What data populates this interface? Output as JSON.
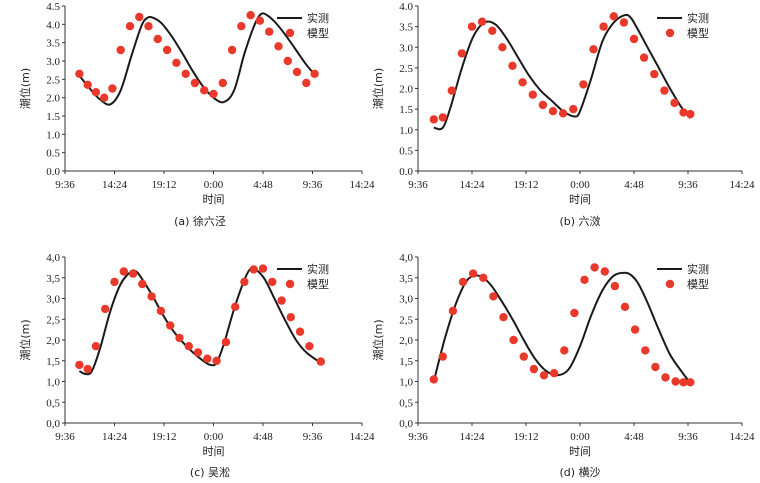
{
  "colors": {
    "measured": "#1a1a1a",
    "model": "#e8392b",
    "axis": "#333333"
  },
  "chart_data": [
    {
      "type": "line",
      "caption": "(a) 徐六泾",
      "xlabel": "时间",
      "ylabel": "潮位(m)",
      "xticks": [
        "9:36",
        "14:24",
        "19:12",
        "0:00",
        "4:48",
        "9:36",
        "14:24"
      ],
      "ylim": [
        0,
        4.5
      ],
      "ystep": 0.5,
      "ydecimals": 1,
      "ydecsep": ".",
      "legend": {
        "position": "top-right",
        "line_label": "实测",
        "marker_label": "模型"
      },
      "series": [
        {
          "name": "实测",
          "style": "line",
          "x": [
            11.0,
            12.0,
            13.0,
            14.0,
            15.0,
            16.0,
            17.0,
            17.6,
            18.2,
            19.0,
            20.0,
            21.0,
            22.0,
            23.0,
            24.0,
            25.0,
            26.0,
            27.0,
            28.0,
            28.6,
            29.2,
            30.0,
            31.0,
            32.0,
            33.0,
            33.9
          ],
          "y": [
            2.6,
            2.25,
            1.95,
            1.82,
            2.2,
            3.1,
            3.95,
            4.18,
            4.17,
            4.02,
            3.65,
            3.2,
            2.72,
            2.3,
            2.0,
            1.88,
            2.2,
            3.2,
            4.0,
            4.28,
            4.25,
            4.05,
            3.7,
            3.3,
            2.9,
            2.6
          ]
        },
        {
          "name": "模型",
          "style": "marker",
          "x": [
            11.0,
            11.8,
            12.6,
            13.4,
            14.2,
            15.0,
            15.9,
            16.8,
            17.7,
            18.6,
            19.5,
            20.4,
            21.3,
            22.2,
            23.1,
            24.0,
            24.9,
            25.8,
            26.7,
            27.6,
            28.5,
            29.4,
            30.3,
            31.2,
            32.1,
            33.0,
            33.8
          ],
          "y": [
            2.65,
            2.35,
            2.15,
            2.0,
            2.25,
            3.3,
            3.95,
            4.2,
            3.95,
            3.6,
            3.3,
            2.95,
            2.65,
            2.4,
            2.2,
            2.1,
            2.4,
            3.3,
            3.95,
            4.25,
            4.1,
            3.8,
            3.4,
            3.0,
            2.7,
            2.4,
            2.65
          ]
        }
      ]
    },
    {
      "type": "line",
      "caption": "(b) 六滧",
      "xlabel": "时间",
      "ylabel": "潮位(m)",
      "xticks": [
        "9:36",
        "14:24",
        "19:12",
        "0:00",
        "4:48",
        "9:36",
        "14:24"
      ],
      "ylim": [
        0,
        4.0
      ],
      "ystep": 0.5,
      "ydecimals": 1,
      "ydecsep": ".",
      "legend": {
        "position": "top-right",
        "line_label": "实测",
        "marker_label": "模型"
      },
      "series": [
        {
          "name": "实测",
          "style": "line",
          "x": [
            11.0,
            11.8,
            12.5,
            13.5,
            14.5,
            15.5,
            16.5,
            17.5,
            18.5,
            19.5,
            20.5,
            21.5,
            22.5,
            23.5,
            24.0,
            25.0,
            26.0,
            27.0,
            28.0,
            28.5,
            29.0,
            30.0,
            31.0,
            32.0,
            33.0,
            33.8
          ],
          "y": [
            1.05,
            1.05,
            1.55,
            2.5,
            3.25,
            3.6,
            3.55,
            3.2,
            2.75,
            2.3,
            1.95,
            1.7,
            1.45,
            1.32,
            1.45,
            2.25,
            3.15,
            3.6,
            3.78,
            3.72,
            3.5,
            3.0,
            2.5,
            2.0,
            1.55,
            1.28
          ]
        },
        {
          "name": "模型",
          "style": "marker",
          "x": [
            11.0,
            11.8,
            12.6,
            13.5,
            14.4,
            15.3,
            16.2,
            17.1,
            18.0,
            18.9,
            19.8,
            20.7,
            21.6,
            22.5,
            23.4,
            24.3,
            25.2,
            26.1,
            27.0,
            27.9,
            28.8,
            29.7,
            30.6,
            31.5,
            32.4,
            33.2,
            33.8
          ],
          "y": [
            1.25,
            1.3,
            1.95,
            2.85,
            3.5,
            3.62,
            3.4,
            3.0,
            2.55,
            2.15,
            1.85,
            1.6,
            1.45,
            1.4,
            1.5,
            2.1,
            2.95,
            3.5,
            3.75,
            3.6,
            3.2,
            2.75,
            2.35,
            1.95,
            1.65,
            1.42,
            1.38
          ]
        }
      ]
    },
    {
      "type": "line",
      "caption": "(c) 吴淞",
      "xlabel": "时间",
      "ylabel": "潮位(m)",
      "xticks": [
        "9:36",
        "14:24",
        "19:12",
        "0:00",
        "4:48",
        "9:36",
        "14:24"
      ],
      "ylim": [
        0,
        4.0
      ],
      "ystep": 0.5,
      "ydecimals": 1,
      "ydecsep": ",",
      "legend": {
        "position": "top-right",
        "line_label": "实测",
        "marker_label": "模型"
      },
      "series": [
        {
          "name": "实测",
          "style": "line",
          "x": [
            11.0,
            11.6,
            12.2,
            13.0,
            14.0,
            15.0,
            16.0,
            16.5,
            17.0,
            18.0,
            19.0,
            20.0,
            21.0,
            22.0,
            23.0,
            23.7,
            24.3,
            25.0,
            26.0,
            27.0,
            27.6,
            28.2,
            29.0,
            30.0,
            31.0,
            32.0,
            33.0,
            34.4
          ],
          "y": [
            1.25,
            1.18,
            1.25,
            1.8,
            2.7,
            3.35,
            3.65,
            3.65,
            3.5,
            3.1,
            2.65,
            2.25,
            1.95,
            1.7,
            1.5,
            1.4,
            1.45,
            1.9,
            2.75,
            3.45,
            3.72,
            3.68,
            3.45,
            2.95,
            2.45,
            2.0,
            1.7,
            1.45
          ]
        },
        {
          "name": "模型",
          "style": "marker",
          "x": [
            11.0,
            11.8,
            12.6,
            13.5,
            14.4,
            15.3,
            16.2,
            17.1,
            18.0,
            18.9,
            19.8,
            20.7,
            21.6,
            22.5,
            23.4,
            24.3,
            25.2,
            26.1,
            27.0,
            27.9,
            28.8,
            29.7,
            30.6,
            31.5,
            32.4,
            33.3,
            34.4
          ],
          "y": [
            1.4,
            1.3,
            1.85,
            2.75,
            3.4,
            3.65,
            3.6,
            3.35,
            3.05,
            2.7,
            2.35,
            2.05,
            1.85,
            1.7,
            1.55,
            1.5,
            1.95,
            2.8,
            3.4,
            3.7,
            3.72,
            3.4,
            2.95,
            2.55,
            2.2,
            1.85,
            1.48
          ]
        }
      ]
    },
    {
      "type": "line",
      "caption": "(d) 横沙",
      "xlabel": "时间",
      "ylabel": "潮位(m)",
      "xticks": [
        "9:36",
        "14:24",
        "19:12",
        "0:00",
        "4:48",
        "9:36",
        "14:24"
      ],
      "ylim": [
        0,
        4.0
      ],
      "ystep": 0.5,
      "ydecimals": 1,
      "ydecsep": ",",
      "legend": {
        "position": "top-right",
        "line_label": "实测",
        "marker_label": "模型"
      },
      "series": [
        {
          "name": "实测",
          "style": "line",
          "x": [
            11.0,
            12.0,
            13.0,
            14.0,
            15.0,
            16.0,
            17.0,
            18.0,
            19.0,
            20.0,
            21.0,
            22.0,
            23.0,
            24.0,
            25.0,
            26.0,
            27.0,
            28.0,
            28.6,
            29.2,
            30.0,
            31.0,
            32.0,
            33.0,
            33.7
          ],
          "y": [
            1.0,
            2.05,
            2.9,
            3.45,
            3.55,
            3.35,
            2.95,
            2.5,
            2.0,
            1.55,
            1.25,
            1.15,
            1.3,
            1.85,
            2.6,
            3.2,
            3.55,
            3.62,
            3.55,
            3.35,
            2.9,
            2.25,
            1.65,
            1.25,
            1.0
          ]
        },
        {
          "name": "模型",
          "style": "marker",
          "x": [
            11.0,
            11.8,
            12.7,
            13.6,
            14.5,
            15.4,
            16.3,
            17.2,
            18.1,
            19.0,
            19.9,
            20.8,
            21.7,
            22.6,
            23.5,
            24.4,
            25.3,
            26.2,
            27.1,
            28.0,
            28.9,
            29.8,
            30.7,
            31.6,
            32.5,
            33.2,
            33.8
          ],
          "y": [
            1.05,
            1.6,
            2.7,
            3.4,
            3.6,
            3.5,
            3.05,
            2.55,
            2.0,
            1.6,
            1.3,
            1.15,
            1.2,
            1.75,
            2.65,
            3.45,
            3.75,
            3.65,
            3.3,
            2.8,
            2.25,
            1.75,
            1.35,
            1.1,
            1.0,
            0.98,
            0.98
          ]
        }
      ]
    }
  ]
}
